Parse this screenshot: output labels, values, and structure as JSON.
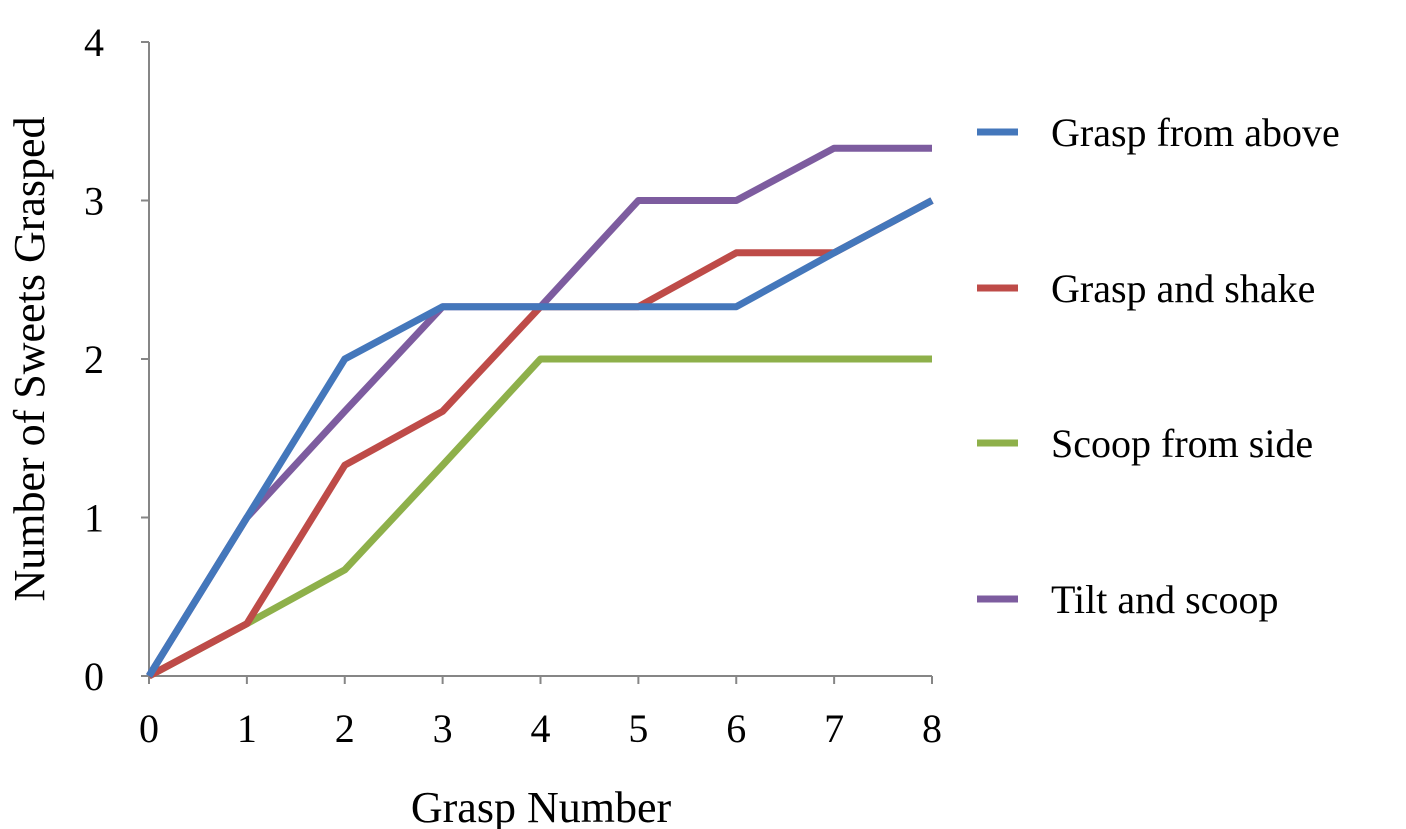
{
  "chart_data": {
    "type": "line",
    "title": "",
    "xlabel": "Grasp Number",
    "ylabel": "Number of Sweets Grasped",
    "x": [
      0,
      1,
      2,
      3,
      4,
      5,
      6,
      7,
      8
    ],
    "xlim": [
      0,
      8
    ],
    "ylim": [
      0,
      4
    ],
    "x_ticks": [
      "0",
      "1",
      "2",
      "3",
      "4",
      "5",
      "6",
      "7",
      "8"
    ],
    "y_ticks": [
      "0",
      "1",
      "2",
      "3",
      "4"
    ],
    "grid": false,
    "legend_position": "right",
    "series": [
      {
        "name": "Grasp from above",
        "color": "#4477BB",
        "values": [
          0,
          1,
          2,
          2.33,
          2.33,
          2.33,
          2.33,
          2.67,
          3
        ]
      },
      {
        "name": "Grasp and shake",
        "color": "#BE4B48",
        "values": [
          0,
          0.33,
          1.33,
          1.67,
          2.33,
          2.33,
          2.67,
          2.67,
          3
        ]
      },
      {
        "name": "Scoop from side",
        "color": "#8EB04A",
        "values": [
          0,
          0.33,
          0.67,
          1.33,
          2,
          2,
          2,
          2,
          2
        ]
      },
      {
        "name": "Tilt and scoop",
        "color": "#7D5C9F",
        "values": [
          0,
          1,
          1.67,
          2.33,
          2.33,
          3,
          3,
          3.33,
          3.33
        ]
      }
    ]
  }
}
